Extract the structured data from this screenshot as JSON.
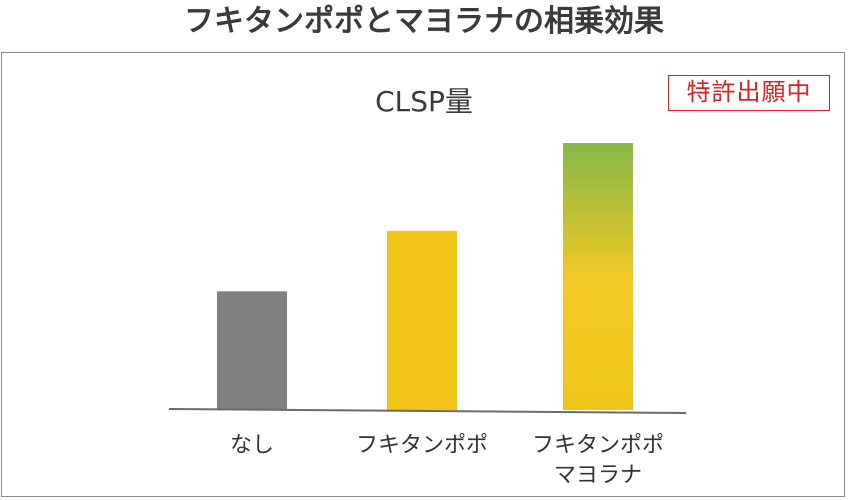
{
  "page": {
    "title": "フキタンポポとマヨラナの相乗効果"
  },
  "badge": {
    "label": "特許出願中",
    "color": "#e02020"
  },
  "colors": {
    "bar_none": "#808080",
    "bar_fuki": "#f0c419",
    "gradient_top": "#85b84a",
    "gradient_mid": "#f5c925",
    "gradient_bottom": "#efc41a",
    "axis": "#6b6b6b"
  },
  "chart_data": {
    "type": "bar",
    "title": "CLSP量",
    "xlabel": "",
    "ylabel": "",
    "categories": [
      "なし",
      "フキタンポポ",
      "フキタンポポ\nマヨラナ"
    ],
    "values": [
      1.0,
      1.51,
      2.25
    ],
    "ylim": [
      0,
      2.25
    ],
    "grid": false,
    "legend": "none"
  }
}
